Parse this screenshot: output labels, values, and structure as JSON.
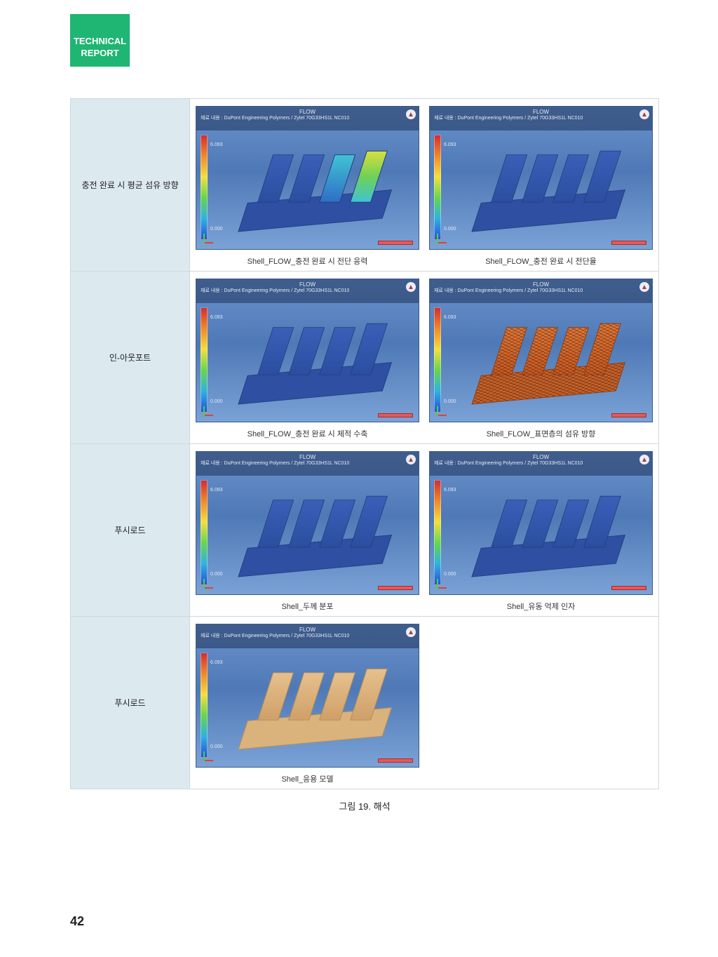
{
  "header": {
    "line1": "TECHNICAL",
    "line2": "REPORT"
  },
  "rows": [
    {
      "label": "충전 완료 시 평균 섬유 방향",
      "cells": [
        {
          "variant": "multi",
          "caption": "Shell_FLOW_충전 완료 시 전단 응력"
        },
        {
          "variant": "blue",
          "caption": "Shell_FLOW_충전 완료 시 전단율"
        }
      ]
    },
    {
      "label": "인-아웃포트",
      "cells": [
        {
          "variant": "blue",
          "caption": "Shell_FLOW_충전 완료 시 체적 수축"
        },
        {
          "variant": "fiber",
          "caption": "Shell_FLOW_표면층의 섬유 방향"
        }
      ]
    },
    {
      "label": "푸시로드",
      "cells": [
        {
          "variant": "blue",
          "caption": "Shell_두께 분포"
        },
        {
          "variant": "blue",
          "caption": "Shell_유동 억제 인자"
        }
      ]
    },
    {
      "label": "푸시로드",
      "cells": [
        {
          "variant": "tan",
          "caption": "Shell_응용 모델"
        }
      ]
    }
  ],
  "simHeader": {
    "subtitle": "재료 내용 : DuPont Engineering Polymers / Zytel 70G33HS1L NC010",
    "legendTicks": [
      "6.093",
      "",
      "",
      "",
      "",
      "0.000"
    ]
  },
  "figureTitle": "그림 19. 해석",
  "pageNumber": "42",
  "colors": {
    "badge": "#1fb572",
    "labelBg": "#dceaf0",
    "border": "#d0d7dc"
  }
}
